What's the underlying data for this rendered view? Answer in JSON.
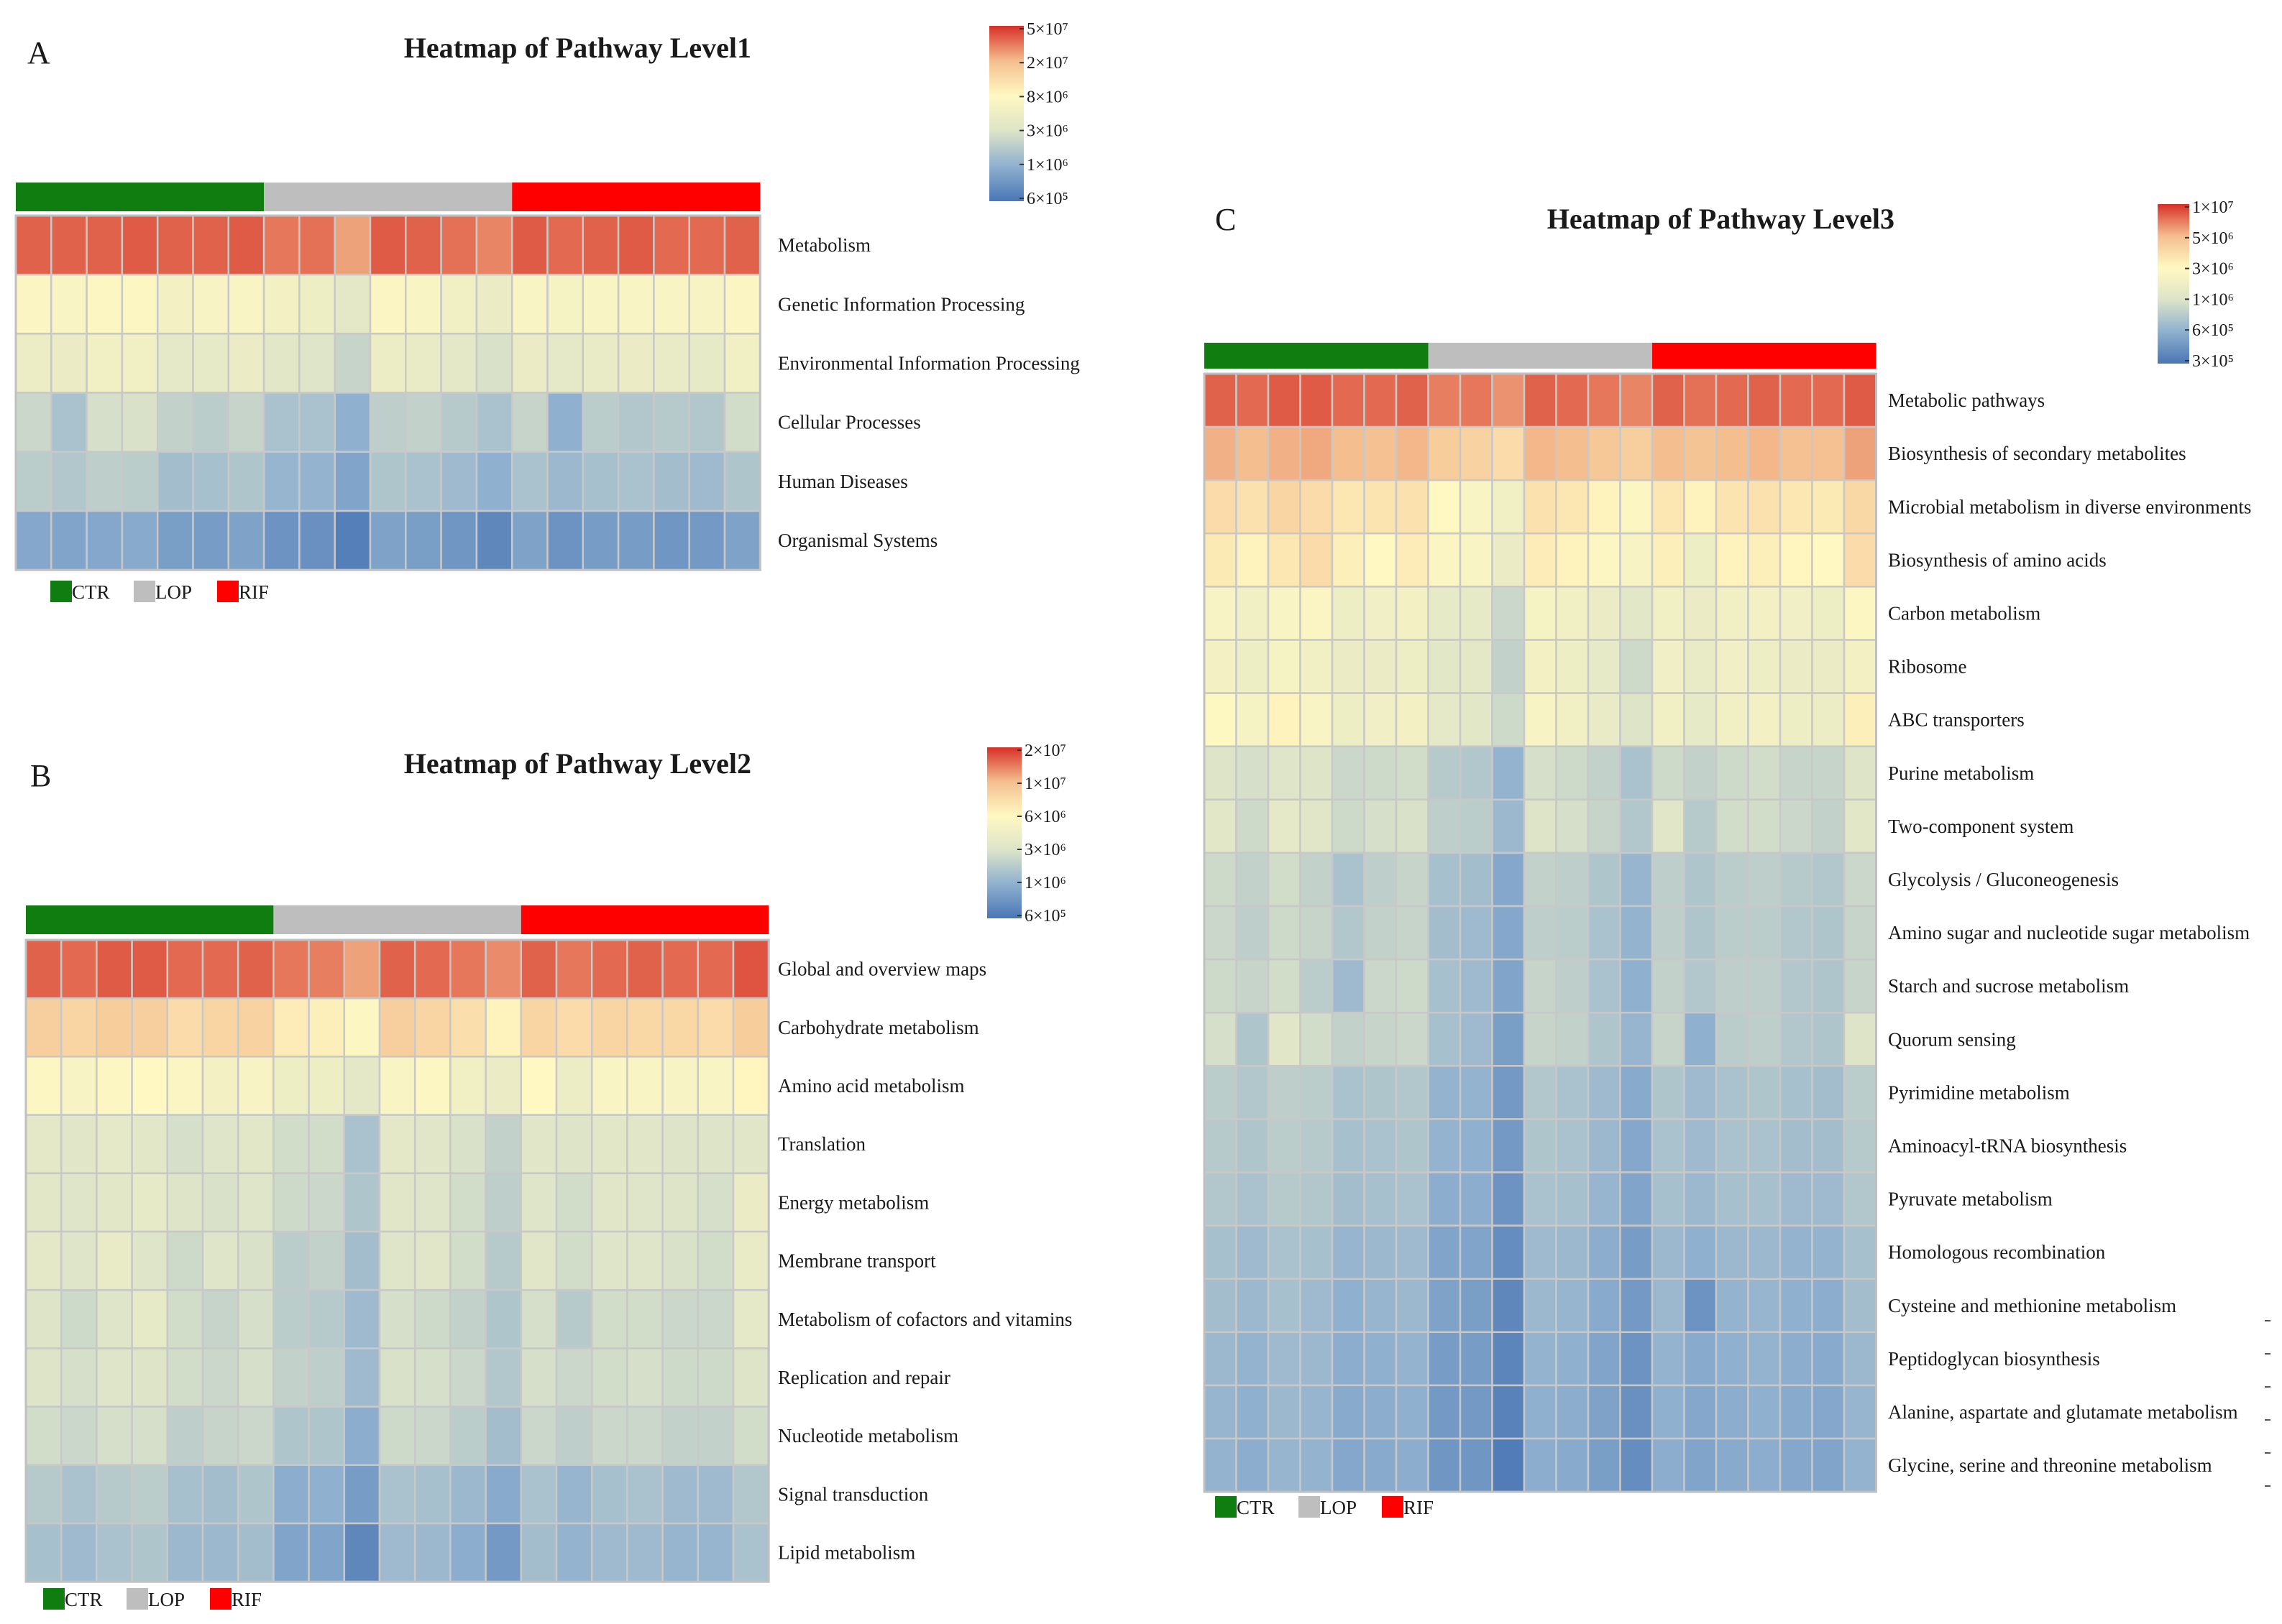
{
  "colors": {
    "CTR": "#0f7d0f",
    "LOP": "#bebebe",
    "RIF": "#ff0000",
    "scale": [
      "#4a76b4",
      "#8fb0cf",
      "#dde4c8",
      "#fff8c2",
      "#f4be8f",
      "#d73027"
    ]
  },
  "chart_data": [
    {
      "type": "heatmap",
      "panel": "A",
      "title": "Heatmap of Pathway Level1",
      "groups": [
        {
          "name": "CTR",
          "count": 7
        },
        {
          "name": "LOP",
          "count": 7
        },
        {
          "name": "RIF",
          "count": 7
        }
      ],
      "legend": [
        "CTR",
        "LOP",
        "RIF"
      ],
      "colorbar": {
        "labels": [
          "5×10⁷",
          "2×10⁷",
          "8×10⁶",
          "3×10⁶",
          "1×10⁶",
          "6×10⁵"
        ],
        "scale": "log",
        "range": [
          600000,
          50000000
        ]
      },
      "rows": [
        "Metabolism",
        "Genetic Information Processing",
        "Environmental Information Processing",
        "Cellular Processes",
        "Human Diseases",
        "Organismal Systems"
      ],
      "values": [
        [
          0.93,
          0.93,
          0.93,
          0.94,
          0.93,
          0.93,
          0.94,
          0.9,
          0.91,
          0.84,
          0.94,
          0.93,
          0.91,
          0.88,
          0.94,
          0.92,
          0.93,
          0.94,
          0.92,
          0.92,
          0.93
        ],
        [
          0.57,
          0.56,
          0.58,
          0.58,
          0.53,
          0.55,
          0.56,
          0.53,
          0.5,
          0.44,
          0.57,
          0.56,
          0.52,
          0.48,
          0.56,
          0.54,
          0.56,
          0.56,
          0.56,
          0.55,
          0.57
        ],
        [
          0.49,
          0.48,
          0.52,
          0.52,
          0.45,
          0.46,
          0.48,
          0.43,
          0.41,
          0.34,
          0.49,
          0.47,
          0.44,
          0.39,
          0.48,
          0.45,
          0.47,
          0.48,
          0.47,
          0.46,
          0.52
        ],
        [
          0.35,
          0.27,
          0.38,
          0.39,
          0.33,
          0.31,
          0.34,
          0.27,
          0.27,
          0.2,
          0.32,
          0.33,
          0.3,
          0.27,
          0.34,
          0.2,
          0.31,
          0.29,
          0.3,
          0.29,
          0.37
        ],
        [
          0.31,
          0.29,
          0.32,
          0.31,
          0.25,
          0.26,
          0.28,
          0.22,
          0.21,
          0.16,
          0.28,
          0.27,
          0.24,
          0.2,
          0.27,
          0.23,
          0.26,
          0.27,
          0.25,
          0.24,
          0.28
        ],
        [
          0.17,
          0.16,
          0.17,
          0.18,
          0.14,
          0.13,
          0.15,
          0.1,
          0.09,
          0.03,
          0.15,
          0.14,
          0.11,
          0.06,
          0.15,
          0.1,
          0.13,
          0.13,
          0.11,
          0.12,
          0.15
        ]
      ]
    },
    {
      "type": "heatmap",
      "panel": "B",
      "title": "Heatmap of Pathway Level2",
      "groups": [
        {
          "name": "CTR",
          "count": 7
        },
        {
          "name": "LOP",
          "count": 7
        },
        {
          "name": "RIF",
          "count": 7
        }
      ],
      "legend": [
        "CTR",
        "LOP",
        "RIF"
      ],
      "colorbar": {
        "labels": [
          "2×10⁷",
          "1×10⁷",
          "6×10⁶",
          "3×10⁶",
          "1×10⁶",
          "6×10⁵"
        ],
        "scale": "log",
        "range": [
          600000,
          20000000
        ]
      },
      "rows": [
        "Global and overview maps",
        "Carbohydrate metabolism",
        "Amino acid metabolism",
        "Translation",
        "Energy metabolism",
        "Membrane transport",
        "Metabolism of cofactors and vitamins",
        "Replication and repair",
        "Nucleotide metabolism",
        "Signal transduction",
        "Lipid metabolism"
      ],
      "values": [
        [
          0.93,
          0.92,
          0.94,
          0.94,
          0.92,
          0.92,
          0.93,
          0.9,
          0.89,
          0.84,
          0.93,
          0.92,
          0.9,
          0.87,
          0.93,
          0.9,
          0.92,
          0.93,
          0.92,
          0.92,
          0.95
        ],
        [
          0.74,
          0.72,
          0.75,
          0.74,
          0.7,
          0.72,
          0.73,
          0.64,
          0.63,
          0.58,
          0.74,
          0.72,
          0.69,
          0.62,
          0.72,
          0.7,
          0.72,
          0.71,
          0.71,
          0.7,
          0.75
        ],
        [
          0.58,
          0.55,
          0.58,
          0.6,
          0.57,
          0.53,
          0.55,
          0.5,
          0.5,
          0.44,
          0.56,
          0.58,
          0.52,
          0.48,
          0.6,
          0.49,
          0.56,
          0.56,
          0.55,
          0.56,
          0.61
        ],
        [
          0.44,
          0.42,
          0.45,
          0.43,
          0.38,
          0.41,
          0.43,
          0.37,
          0.37,
          0.27,
          0.44,
          0.42,
          0.39,
          0.33,
          0.42,
          0.4,
          0.43,
          0.42,
          0.4,
          0.4,
          0.42
        ],
        [
          0.43,
          0.41,
          0.43,
          0.46,
          0.4,
          0.39,
          0.41,
          0.36,
          0.35,
          0.28,
          0.42,
          0.41,
          0.37,
          0.32,
          0.41,
          0.37,
          0.42,
          0.41,
          0.4,
          0.38,
          0.48
        ],
        [
          0.44,
          0.41,
          0.47,
          0.41,
          0.36,
          0.41,
          0.39,
          0.31,
          0.33,
          0.25,
          0.41,
          0.42,
          0.37,
          0.3,
          0.42,
          0.37,
          0.41,
          0.41,
          0.39,
          0.37,
          0.47
        ],
        [
          0.4,
          0.36,
          0.41,
          0.46,
          0.37,
          0.34,
          0.38,
          0.31,
          0.3,
          0.24,
          0.38,
          0.36,
          0.33,
          0.28,
          0.38,
          0.3,
          0.37,
          0.37,
          0.35,
          0.35,
          0.45
        ],
        [
          0.4,
          0.38,
          0.41,
          0.4,
          0.37,
          0.35,
          0.38,
          0.33,
          0.32,
          0.24,
          0.39,
          0.38,
          0.35,
          0.29,
          0.38,
          0.35,
          0.37,
          0.38,
          0.36,
          0.36,
          0.4
        ],
        [
          0.37,
          0.35,
          0.38,
          0.38,
          0.32,
          0.34,
          0.35,
          0.28,
          0.28,
          0.19,
          0.36,
          0.35,
          0.31,
          0.25,
          0.35,
          0.32,
          0.35,
          0.35,
          0.33,
          0.33,
          0.37
        ],
        [
          0.3,
          0.27,
          0.3,
          0.31,
          0.26,
          0.25,
          0.28,
          0.19,
          0.2,
          0.13,
          0.27,
          0.26,
          0.23,
          0.18,
          0.27,
          0.22,
          0.26,
          0.27,
          0.24,
          0.24,
          0.29
        ],
        [
          0.26,
          0.24,
          0.27,
          0.28,
          0.23,
          0.23,
          0.25,
          0.16,
          0.16,
          0.06,
          0.24,
          0.23,
          0.19,
          0.12,
          0.25,
          0.21,
          0.24,
          0.24,
          0.22,
          0.22,
          0.27
        ]
      ]
    },
    {
      "type": "heatmap",
      "panel": "C",
      "title": "Heatmap of Pathway Level3",
      "groups": [
        {
          "name": "CTR",
          "count": 7
        },
        {
          "name": "LOP",
          "count": 7
        },
        {
          "name": "RIF",
          "count": 7
        }
      ],
      "legend": [
        "CTR",
        "LOP",
        "RIF"
      ],
      "colorbar": {
        "labels": [
          "1×10⁷",
          "5×10⁶",
          "3×10⁶",
          "1×10⁶",
          "6×10⁵",
          "3×10⁵"
        ],
        "scale": "log",
        "range": [
          300000,
          10000000
        ]
      },
      "rows": [
        "Metabolic pathways",
        "Biosynthesis of secondary metabolites",
        "Microbial metabolism in diverse environments",
        "Biosynthesis of amino acids",
        "Carbon metabolism",
        "Ribosome",
        "ABC transporters",
        "Purine metabolism",
        "Two-component system",
        "Glycolysis / Gluconeogenesis",
        "Amino sugar and nucleotide sugar metabolism",
        "Starch and sucrose metabolism",
        "Quorum sensing",
        "Pyrimidine metabolism",
        "Aminoacyl-tRNA biosynthesis",
        "Pyruvate metabolism",
        "Homologous recombination",
        "Cysteine and methionine metabolism",
        "Peptidoglycan biosynthesis",
        "Alanine, aspartate and glutamate metabolism",
        "Glycine, serine and threonine metabolism"
      ],
      "values": [
        [
          0.93,
          0.92,
          0.94,
          0.94,
          0.92,
          0.92,
          0.93,
          0.89,
          0.9,
          0.86,
          0.93,
          0.92,
          0.9,
          0.88,
          0.93,
          0.91,
          0.92,
          0.93,
          0.92,
          0.92,
          0.94
        ],
        [
          0.82,
          0.8,
          0.82,
          0.83,
          0.8,
          0.79,
          0.81,
          0.75,
          0.73,
          0.7,
          0.81,
          0.8,
          0.77,
          0.74,
          0.8,
          0.78,
          0.8,
          0.81,
          0.79,
          0.79,
          0.84
        ],
        [
          0.7,
          0.68,
          0.72,
          0.7,
          0.66,
          0.67,
          0.68,
          0.6,
          0.56,
          0.52,
          0.68,
          0.66,
          0.62,
          0.58,
          0.66,
          0.62,
          0.67,
          0.68,
          0.66,
          0.65,
          0.71
        ],
        [
          0.65,
          0.62,
          0.66,
          0.7,
          0.63,
          0.6,
          0.64,
          0.57,
          0.56,
          0.48,
          0.64,
          0.62,
          0.58,
          0.55,
          0.63,
          0.5,
          0.62,
          0.63,
          0.61,
          0.6,
          0.7
        ],
        [
          0.55,
          0.52,
          0.56,
          0.57,
          0.5,
          0.51,
          0.53,
          0.46,
          0.46,
          0.35,
          0.54,
          0.52,
          0.48,
          0.43,
          0.52,
          0.48,
          0.52,
          0.53,
          0.51,
          0.5,
          0.58
        ],
        [
          0.53,
          0.5,
          0.54,
          0.52,
          0.48,
          0.48,
          0.5,
          0.43,
          0.44,
          0.33,
          0.53,
          0.5,
          0.46,
          0.36,
          0.51,
          0.47,
          0.51,
          0.5,
          0.48,
          0.48,
          0.53
        ],
        [
          0.59,
          0.54,
          0.62,
          0.56,
          0.5,
          0.51,
          0.53,
          0.45,
          0.43,
          0.36,
          0.55,
          0.52,
          0.47,
          0.4,
          0.52,
          0.46,
          0.52,
          0.53,
          0.5,
          0.49,
          0.63
        ],
        [
          0.4,
          0.38,
          0.41,
          0.4,
          0.35,
          0.36,
          0.37,
          0.3,
          0.29,
          0.21,
          0.38,
          0.36,
          0.33,
          0.27,
          0.36,
          0.33,
          0.36,
          0.37,
          0.34,
          0.34,
          0.4
        ],
        [
          0.43,
          0.36,
          0.45,
          0.42,
          0.36,
          0.38,
          0.39,
          0.32,
          0.31,
          0.23,
          0.4,
          0.38,
          0.34,
          0.29,
          0.42,
          0.3,
          0.37,
          0.37,
          0.35,
          0.33,
          0.43
        ],
        [
          0.36,
          0.33,
          0.37,
          0.33,
          0.27,
          0.32,
          0.34,
          0.26,
          0.25,
          0.17,
          0.33,
          0.32,
          0.28,
          0.22,
          0.32,
          0.28,
          0.31,
          0.32,
          0.3,
          0.29,
          0.35
        ],
        [
          0.35,
          0.32,
          0.36,
          0.34,
          0.29,
          0.33,
          0.34,
          0.25,
          0.24,
          0.17,
          0.32,
          0.31,
          0.27,
          0.21,
          0.32,
          0.28,
          0.31,
          0.31,
          0.29,
          0.28,
          0.34
        ],
        [
          0.36,
          0.34,
          0.37,
          0.31,
          0.24,
          0.35,
          0.36,
          0.26,
          0.24,
          0.16,
          0.34,
          0.32,
          0.27,
          0.2,
          0.33,
          0.29,
          0.32,
          0.32,
          0.29,
          0.28,
          0.34
        ],
        [
          0.38,
          0.28,
          0.42,
          0.37,
          0.33,
          0.34,
          0.35,
          0.26,
          0.24,
          0.14,
          0.34,
          0.33,
          0.28,
          0.22,
          0.34,
          0.2,
          0.31,
          0.32,
          0.29,
          0.28,
          0.4
        ],
        [
          0.31,
          0.29,
          0.32,
          0.31,
          0.27,
          0.28,
          0.29,
          0.21,
          0.21,
          0.12,
          0.29,
          0.27,
          0.24,
          0.18,
          0.28,
          0.24,
          0.27,
          0.28,
          0.26,
          0.25,
          0.31
        ],
        [
          0.3,
          0.28,
          0.31,
          0.3,
          0.26,
          0.27,
          0.28,
          0.21,
          0.2,
          0.12,
          0.28,
          0.27,
          0.23,
          0.17,
          0.27,
          0.24,
          0.27,
          0.27,
          0.25,
          0.25,
          0.3
        ],
        [
          0.29,
          0.27,
          0.3,
          0.29,
          0.25,
          0.26,
          0.27,
          0.19,
          0.19,
          0.1,
          0.27,
          0.26,
          0.22,
          0.16,
          0.26,
          0.23,
          0.26,
          0.26,
          0.24,
          0.24,
          0.29
        ],
        [
          0.26,
          0.24,
          0.27,
          0.26,
          0.22,
          0.23,
          0.24,
          0.16,
          0.16,
          0.08,
          0.24,
          0.23,
          0.19,
          0.13,
          0.23,
          0.2,
          0.23,
          0.23,
          0.21,
          0.21,
          0.26
        ],
        [
          0.25,
          0.23,
          0.26,
          0.24,
          0.2,
          0.22,
          0.23,
          0.15,
          0.14,
          0.06,
          0.23,
          0.22,
          0.18,
          0.12,
          0.23,
          0.1,
          0.21,
          0.22,
          0.2,
          0.19,
          0.25
        ],
        [
          0.23,
          0.21,
          0.24,
          0.23,
          0.19,
          0.2,
          0.21,
          0.13,
          0.13,
          0.05,
          0.21,
          0.2,
          0.16,
          0.1,
          0.21,
          0.18,
          0.2,
          0.21,
          0.19,
          0.18,
          0.23
        ],
        [
          0.22,
          0.2,
          0.23,
          0.22,
          0.18,
          0.19,
          0.2,
          0.12,
          0.12,
          0.04,
          0.2,
          0.19,
          0.15,
          0.09,
          0.2,
          0.17,
          0.19,
          0.2,
          0.18,
          0.17,
          0.22
        ],
        [
          0.21,
          0.19,
          0.22,
          0.21,
          0.17,
          0.18,
          0.19,
          0.11,
          0.11,
          0.02,
          0.19,
          0.18,
          0.14,
          0.08,
          0.19,
          0.16,
          0.18,
          0.19,
          0.17,
          0.16,
          0.21
        ]
      ]
    }
  ]
}
